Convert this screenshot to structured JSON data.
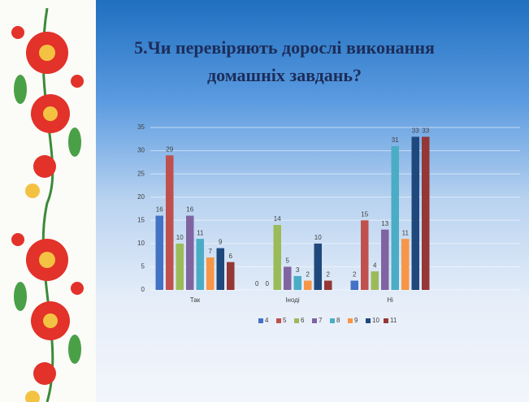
{
  "chart_data": {
    "type": "bar",
    "title": "5.Чи перевіряють дорослі виконання домашніх завдань?",
    "categories": [
      "Так",
      "Іноді",
      "Ні"
    ],
    "series": [
      {
        "name": "4",
        "color": "#4472c4",
        "values": [
          16,
          0,
          2
        ]
      },
      {
        "name": "5",
        "color": "#c0504d",
        "values": [
          29,
          0,
          15
        ]
      },
      {
        "name": "6",
        "color": "#9bbb59",
        "values": [
          10,
          14,
          4
        ]
      },
      {
        "name": "7",
        "color": "#8064a2",
        "values": [
          16,
          5,
          13
        ]
      },
      {
        "name": "8",
        "color": "#4bacc6",
        "values": [
          11,
          3,
          31
        ]
      },
      {
        "name": "9",
        "color": "#f79646",
        "values": [
          7,
          2,
          11
        ]
      },
      {
        "name": "10",
        "color": "#1f497d",
        "values": [
          9,
          10,
          33
        ]
      },
      {
        "name": "11",
        "color": "#953735",
        "values": [
          6,
          2,
          33
        ]
      }
    ],
    "ylim": [
      0,
      35
    ],
    "yticks": [
      0,
      5,
      10,
      15,
      20,
      25,
      30,
      35
    ],
    "grid": true,
    "legend": "bottom"
  }
}
